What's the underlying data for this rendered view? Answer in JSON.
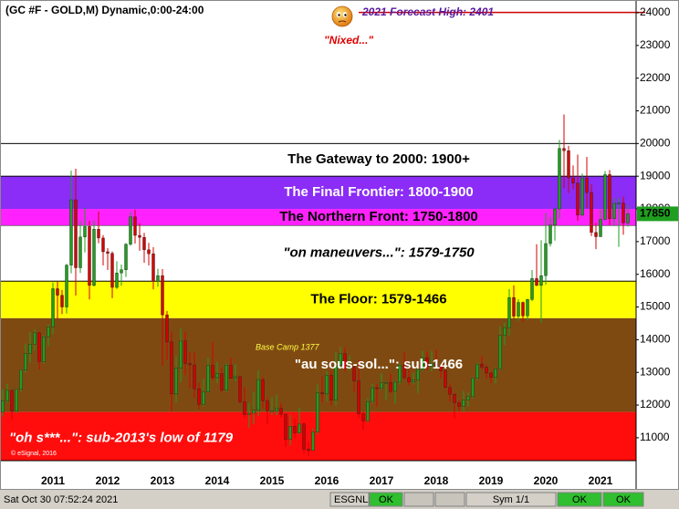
{
  "chart_data": {
    "type": "candlestick",
    "title": "(GC #F - GOLD,M) Dynamic,0:00-24:00",
    "categories": [
      null,
      null,
      null,
      null,
      null,
      null,
      null,
      null,
      "2011",
      null,
      null,
      null,
      null,
      null,
      null,
      null,
      null,
      null,
      null,
      null,
      "2012",
      null,
      null,
      null,
      null,
      null,
      null,
      null,
      null,
      null,
      null,
      null,
      "2013",
      null,
      null,
      null,
      null,
      null,
      null,
      null,
      null,
      null,
      null,
      null,
      "2014",
      null,
      null,
      null,
      null,
      null,
      null,
      null,
      null,
      null,
      null,
      null,
      "2015",
      null,
      null,
      null,
      null,
      null,
      null,
      null,
      null,
      null,
      null,
      null,
      "2016",
      null,
      null,
      null,
      null,
      null,
      null,
      null,
      null,
      null,
      null,
      null,
      "2017",
      null,
      null,
      null,
      null,
      null,
      null,
      null,
      null,
      null,
      null,
      null,
      "2018",
      null,
      null,
      null,
      null,
      null,
      null,
      null,
      null,
      null,
      null,
      null,
      "2019",
      null,
      null,
      null,
      null,
      null,
      null,
      null,
      null,
      null,
      null,
      null,
      "2020",
      null,
      null,
      null,
      null,
      null,
      null,
      null,
      null,
      null,
      null,
      null,
      "2021",
      null,
      null,
      null,
      null,
      null,
      null,
      null,
      null,
      null
    ],
    "open": [
      11790,
      12130,
      12450,
      11810,
      12480,
      13070,
      13570,
      13860,
      14210,
      13330,
      14090,
      14390,
      15560,
      15360,
      15000,
      16280,
      18280,
      16200,
      17140,
      17460,
      15660,
      17380,
      17110,
      16690,
      16640,
      15600,
      16040,
      16140,
      16920,
      17760,
      17190,
      17130,
      16750,
      16630,
      15790,
      15960,
      14760,
      13930,
      12340,
      13130,
      13960,
      13270,
      13230,
      12500,
      12020,
      12400,
      13210,
      12840,
      12960,
      12460,
      13220,
      12820,
      12870,
      12100,
      11710,
      11750,
      11840,
      12780,
      12130,
      11830,
      11830,
      11900,
      11720,
      10950,
      11350,
      11150,
      11420,
      10650,
      10610,
      11180,
      12380,
      12340,
      12910,
      12150,
      13220,
      13570,
      13130,
      13160,
      12740,
      11730,
      11520,
      12110,
      12530,
      12510,
      12680,
      12690,
      12420,
      12700,
      13220,
      12840,
      12710,
      12770,
      13090,
      13450,
      13180,
      13270,
      13190,
      13050,
      12540,
      12330,
      12070,
      11960,
      12150,
      12260,
      12820,
      13250,
      13160,
      12980,
      12850,
      13110,
      14130,
      14370,
      15290,
      14720,
      15140,
      14730,
      15230,
      15870,
      15660,
      15960,
      16940,
      17510,
      18000,
      19850,
      19780,
      18950,
      18790,
      17810,
      18950,
      18500,
      17280,
      17150,
      17680,
      19050,
      17700,
      18170,
      18180,
      17570
    ],
    "high": [
      12490,
      12650,
      12470,
      12510,
      13100,
      13880,
      14240,
      14320,
      14240,
      14130,
      14470,
      15750,
      15770,
      15520,
      16320,
      19170,
      19230,
      17630,
      18040,
      17630,
      17640,
      17920,
      17200,
      16800,
      16700,
      16400,
      16300,
      16950,
      17900,
      17980,
      17560,
      17270,
      16960,
      16830,
      16170,
      16160,
      14880,
      14240,
      13480,
      14340,
      14240,
      13620,
      13610,
      12680,
      12800,
      13450,
      13920,
      13310,
      13150,
      13260,
      13450,
      13250,
      12910,
      12550,
      12050,
      12390,
      13070,
      12860,
      12240,
      12240,
      12320,
      12050,
      11750,
      11700,
      11570,
      11920,
      11470,
      10880,
      11280,
      12630,
      12870,
      13040,
      13060,
      13620,
      13770,
      13750,
      13520,
      13260,
      13370,
      11800,
      12200,
      12650,
      12640,
      12970,
      12710,
      12960,
      12740,
      13260,
      13620,
      13090,
      12990,
      13130,
      13660,
      13620,
      13650,
      13690,
      13260,
      13100,
      12660,
      12370,
      12140,
      12430,
      12380,
      12860,
      13300,
      13490,
      13240,
      13020,
      13130,
      14420,
      14530,
      15550,
      15660,
      15240,
      15170,
      15250,
      16130,
      16920,
      17040,
      17880,
      17750,
      18030,
      20110,
      20890,
      19930,
      19330,
      19660,
      19080,
      19590,
      18750,
      17570,
      17980,
      19160,
      19190,
      18340,
      18340,
      18370,
      18130
    ],
    "low": [
      11650,
      12070,
      11550,
      11750,
      12420,
      13000,
      13300,
      13670,
      13080,
      13270,
      13810,
      14170,
      14620,
      14780,
      14800,
      16030,
      15350,
      16040,
      16670,
      15230,
      15630,
      16950,
      16270,
      16130,
      15270,
      15550,
      15650,
      15920,
      16870,
      16940,
      16720,
      16350,
      16270,
      15540,
      15620,
      13210,
      13380,
      11800,
      12080,
      12700,
      12920,
      12510,
      12210,
      11870,
      11960,
      12380,
      12770,
      12680,
      12400,
      12400,
      12800,
      12730,
      12050,
      11600,
      11310,
      11420,
      11670,
      11900,
      11420,
      11700,
      11690,
      11620,
      10720,
      10770,
      10980,
      11110,
      10520,
      10450,
      10620,
      11110,
      12080,
      12120,
      12000,
      12000,
      13100,
      13030,
      13050,
      12410,
      11610,
      11230,
      11460,
      12050,
      11950,
      12470,
      12150,
      12360,
      12050,
      12640,
      12770,
      12610,
      12640,
      12370,
      13030,
      13070,
      13030,
      13120,
      12820,
      12500,
      12110,
      11600,
      11800,
      11820,
      11960,
      12210,
      12760,
      13100,
      12810,
      12670,
      12660,
      13060,
      13830,
      14130,
      14650,
      14580,
      14540,
      14590,
      15180,
      15640,
      14510,
      15680,
      16850,
      17030,
      17700,
      18630,
      18490,
      18600,
      17640,
      17760,
      18020,
      17170,
      16770,
      17210,
      17650,
      17510,
      17500,
      16840,
      17210,
      17460
    ],
    "close": [
      12130,
      12450,
      11810,
      12480,
      13070,
      13570,
      13860,
      14210,
      13330,
      14090,
      14390,
      15560,
      15360,
      15000,
      16280,
      18280,
      16200,
      17140,
      17460,
      15660,
      17380,
      17110,
      16690,
      16640,
      15600,
      16040,
      16140,
      16920,
      17760,
      17190,
      17130,
      16750,
      16630,
      15790,
      15960,
      14760,
      13930,
      12340,
      13130,
      13960,
      13270,
      13230,
      12500,
      12020,
      12400,
      13210,
      12840,
      12960,
      12460,
      13220,
      12820,
      12870,
      12100,
      11710,
      11750,
      11840,
      12780,
      12130,
      11830,
      11830,
      11900,
      11720,
      10950,
      11350,
      11150,
      11420,
      10650,
      10610,
      11180,
      12380,
      12340,
      12910,
      12150,
      13220,
      13570,
      13130,
      13160,
      12740,
      11730,
      11520,
      12110,
      12530,
      12510,
      12680,
      12690,
      12420,
      12700,
      13220,
      12840,
      12710,
      12770,
      13090,
      13450,
      13180,
      13270,
      13190,
      13050,
      12540,
      12330,
      12070,
      11960,
      12150,
      12260,
      12820,
      13250,
      13160,
      12980,
      12850,
      13110,
      14130,
      14370,
      15290,
      14720,
      15140,
      14730,
      15230,
      15870,
      15660,
      15960,
      16940,
      17510,
      18000,
      19850,
      19780,
      18950,
      18790,
      17810,
      18950,
      18500,
      17280,
      17150,
      17680,
      19050,
      17700,
      18170,
      18180,
      17570,
      17850
    ],
    "up_color": "#1f9e1f",
    "down_color": "#d40000",
    "ylim": [
      10300,
      24390
    ],
    "yticks": [
      11000,
      12000,
      13000,
      14000,
      15000,
      16000,
      17000,
      18000,
      19000,
      20000,
      21000,
      22000,
      23000,
      24000
    ],
    "bands": [
      {
        "label": "\"oh s***...\":  sub-2013's low of 1179",
        "to": 11790,
        "color": "#ff0d0d"
      },
      {
        "label": "\"au sous-sol...\":  sub-1466",
        "from": 11790,
        "to": 14660,
        "color": "#7f4a12"
      },
      {
        "label": "The Floor:  1579-1466",
        "from": 14660,
        "to": 15790,
        "color": "#ffff00"
      },
      {
        "label": "\"on maneuvers...\":  1579-1750",
        "from": 15790,
        "to": 17500,
        "color": "#ffffff"
      },
      {
        "label": "The Northern Front:  1750-1800",
        "from": 17500,
        "to": 18000,
        "color": "#ff22ff"
      },
      {
        "label": "The Final Frontier:  1800-1900",
        "from": 18000,
        "to": 19000,
        "color": "#8b2cf7"
      },
      {
        "label": "The Gateway to 2000:  1900+",
        "from": 19000,
        "to": 20000,
        "color": "#ffffff"
      }
    ],
    "forecast_line": {
      "value": 24010,
      "color": "#cc0000",
      "label": "2021 Forecast High:  2401"
    },
    "annotations": [
      "\"Nixed...\"",
      "Base Camp 1377",
      "© eSignal, 2016"
    ],
    "last_price_color": "#1f9e1f"
  },
  "status_bar": {
    "time": "Sat Oct 30 07:52:24 2021",
    "feed": "ESGNL:",
    "ok": [
      "OK",
      "OK",
      "OK"
    ],
    "symbol": "Sym 1/1"
  }
}
